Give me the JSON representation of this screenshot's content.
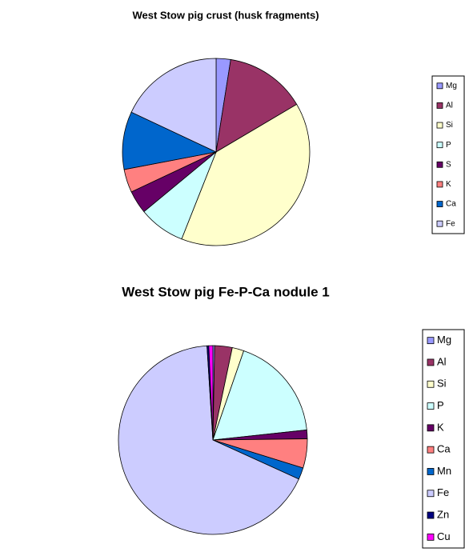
{
  "chart_data": [
    {
      "type": "pie",
      "title": "West Stow pig crust (husk fragments)",
      "categories": [
        "Mg",
        "Al",
        "Si",
        "P",
        "S",
        "K",
        "Ca",
        "Fe"
      ],
      "values": [
        2.5,
        14,
        39.5,
        8,
        4,
        4,
        10,
        18
      ],
      "colors": [
        "#9999ff",
        "#993366",
        "#ffffcc",
        "#ccffff",
        "#660066",
        "#ff8080",
        "#0066cc",
        "#ccccff"
      ],
      "legend": "right"
    },
    {
      "type": "pie",
      "title": "West Stow pig Fe-P-Ca nodule 1",
      "categories": [
        "Mg",
        "Al",
        "Si",
        "P",
        "K",
        "Ca",
        "Mn",
        "Fe",
        "Zn",
        "Cu"
      ],
      "values": [
        0.3,
        3,
        2,
        18,
        1.5,
        5,
        2,
        67.2,
        0.3,
        0.7
      ],
      "colors": [
        "#9999ff",
        "#993366",
        "#ffffcc",
        "#ccffff",
        "#660066",
        "#ff8080",
        "#0066cc",
        "#ccccff",
        "#000080",
        "#ff00ff"
      ],
      "legend": "right"
    }
  ]
}
